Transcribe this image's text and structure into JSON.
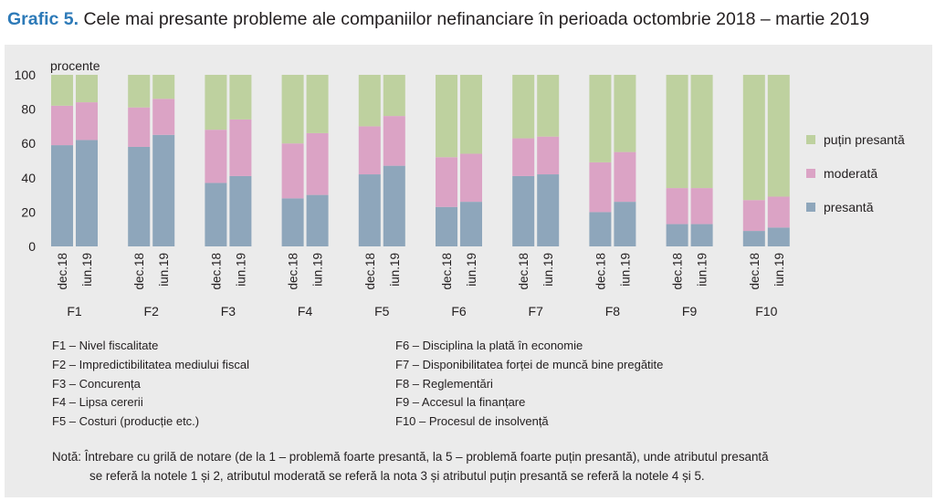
{
  "title": {
    "label": "Grafic 5.",
    "text": "Cele mai presante probleme ale companiilor nefinanciare în perioada octombrie 2018 – martie 2019"
  },
  "legend": [
    "puțin presantă",
    "moderată",
    "presantă"
  ],
  "colors": {
    "presanta": "#8ea6bb",
    "moderata": "#dba3c5",
    "putin_presanta": "#bed19f",
    "panel": "#ebebeb"
  },
  "factors": {
    "left": [
      "F1 – Nivel fiscalitate",
      "F2 – Impredictibilitatea mediului fiscal",
      "F3 – Concurența",
      "F4 – Lipsa cererii",
      "F5 – Costuri (producție etc.)"
    ],
    "right": [
      "F6 – Disciplina la plată în economie",
      "F7 – Disponibilitatea forței de muncă bine pregătite",
      "F8 – Reglementări",
      "F9 – Accesul la finanțare",
      "F10 – Procesul de insolvență"
    ]
  },
  "note": {
    "line1": "Notă: Întrebare cu grilă de notare (de la 1 – problemă foarte presantă, la 5 – problemă foarte puțin presantă), unde atributul presantă",
    "line2": "se referă la notele 1 și 2, atributul moderată se referă la nota 3 și atributul puțin presantă se referă la notele 4 și 5."
  },
  "chart_data": {
    "type": "bar",
    "stacked": true,
    "ylabel": "procente",
    "ylim": [
      0,
      100
    ],
    "yticks": [
      0,
      20,
      40,
      60,
      80,
      100
    ],
    "groups": [
      "F1",
      "F2",
      "F3",
      "F4",
      "F5",
      "F6",
      "F7",
      "F8",
      "F9",
      "F10"
    ],
    "periods": [
      "dec.18",
      "iun.19"
    ],
    "grid": false,
    "legend_position": "right",
    "series": [
      {
        "name": "presantă",
        "color": "#8ea6bb",
        "values": [
          [
            59,
            62
          ],
          [
            58,
            65
          ],
          [
            37,
            41
          ],
          [
            28,
            30
          ],
          [
            42,
            47
          ],
          [
            23,
            26
          ],
          [
            41,
            42
          ],
          [
            20,
            26
          ],
          [
            13,
            13
          ],
          [
            9,
            11
          ]
        ]
      },
      {
        "name": "moderată",
        "color": "#dba3c5",
        "values": [
          [
            23,
            22
          ],
          [
            23,
            21
          ],
          [
            31,
            33
          ],
          [
            32,
            36
          ],
          [
            28,
            29
          ],
          [
            29,
            28
          ],
          [
            22,
            22
          ],
          [
            29,
            29
          ],
          [
            21,
            21
          ],
          [
            18,
            18
          ]
        ]
      },
      {
        "name": "puțin presantă",
        "color": "#bed19f",
        "values": [
          [
            18,
            16
          ],
          [
            19,
            14
          ],
          [
            32,
            26
          ],
          [
            40,
            34
          ],
          [
            30,
            24
          ],
          [
            48,
            46
          ],
          [
            37,
            36
          ],
          [
            51,
            45
          ],
          [
            66,
            66
          ],
          [
            73,
            71
          ]
        ]
      }
    ]
  }
}
